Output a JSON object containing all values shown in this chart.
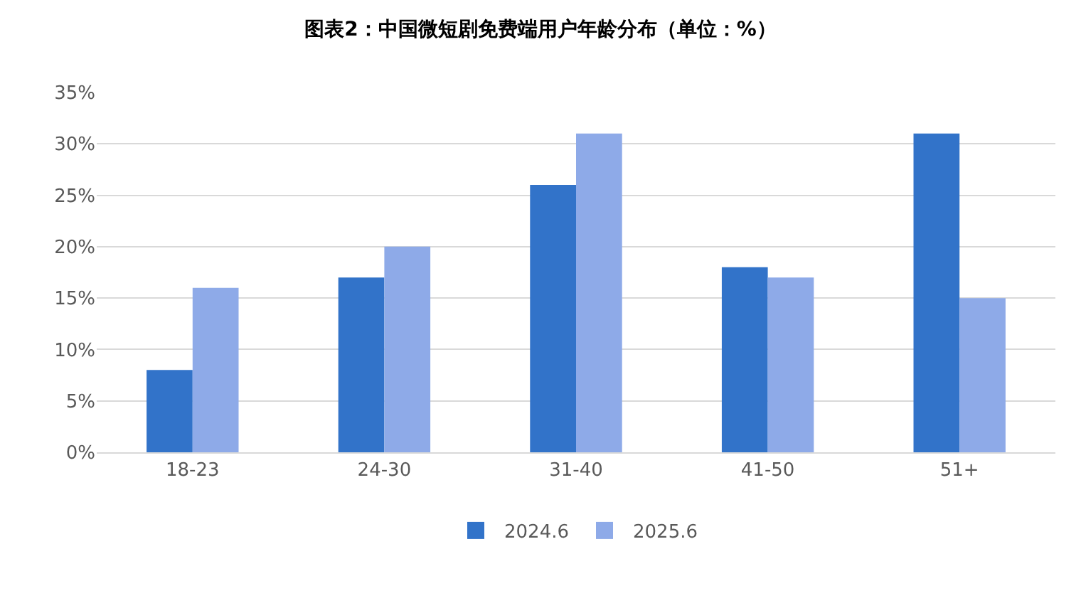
{
  "chart_data": {
    "type": "bar",
    "title": "图表2：中国微短剧免费端用户年龄分布（单位：%）",
    "categories": [
      "18-23",
      "24-30",
      "31-40",
      "41-50",
      "51+"
    ],
    "series": [
      {
        "name": "2024.6",
        "color": "#3273c9",
        "values": [
          8,
          17,
          26,
          18,
          31
        ]
      },
      {
        "name": "2025.6",
        "color": "#8eaae8",
        "values": [
          16,
          20,
          31,
          17,
          15
        ]
      }
    ],
    "ylim": [
      0,
      35
    ],
    "yticks": [
      {
        "value": 0,
        "label": "0%"
      },
      {
        "value": 5,
        "label": "5%"
      },
      {
        "value": 10,
        "label": "10%"
      },
      {
        "value": 15,
        "label": "15%"
      },
      {
        "value": 20,
        "label": "20%"
      },
      {
        "value": 25,
        "label": "25%"
      },
      {
        "value": 30,
        "label": "30%"
      },
      {
        "value": 35,
        "label": "35%"
      }
    ],
    "grid": "y",
    "legend": "bottom"
  }
}
